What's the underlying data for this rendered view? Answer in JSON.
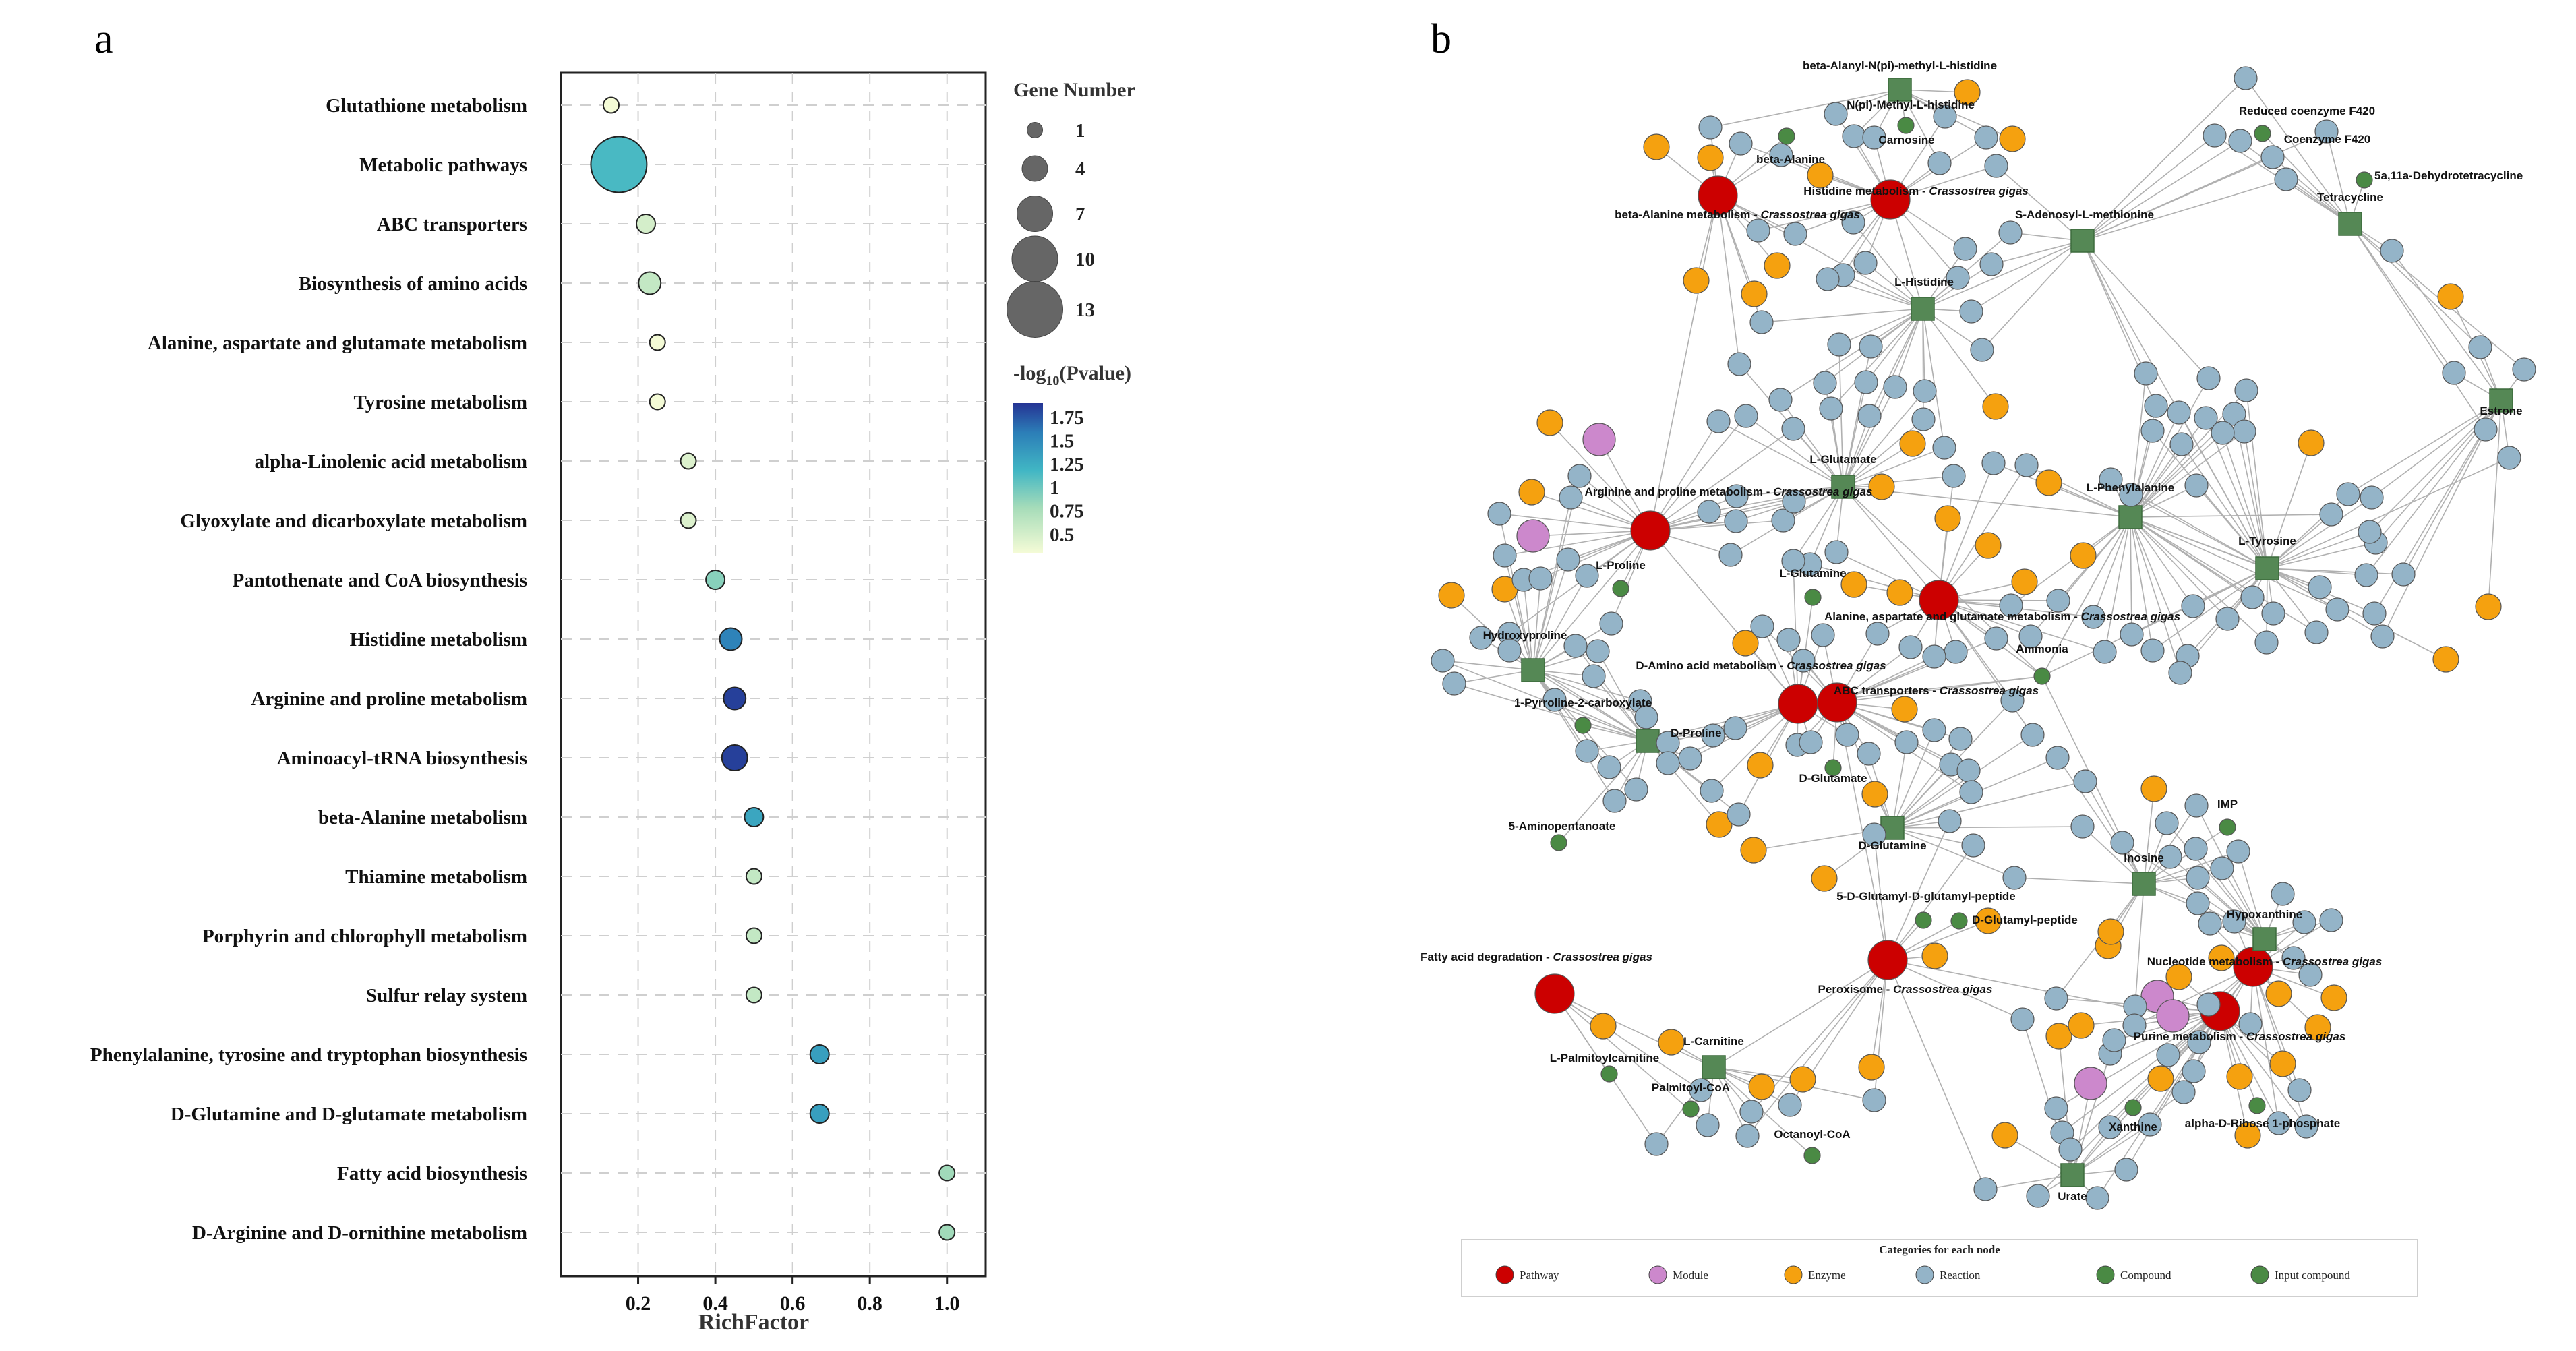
{
  "panels": {
    "a": "a",
    "b": "b"
  },
  "colors": {
    "pathway": "#cc0000",
    "module": "#cc88cc",
    "enzyme": "#f5a10f",
    "reaction": "#94b4c8",
    "compound": "#4a8a44",
    "input_compound": "#4a8a44",
    "square_fill": "#558855",
    "edge": "#b3b3b3"
  },
  "chart_data": [
    {
      "type": "scatter",
      "subtype": "enrichment-bubble",
      "xlabel": "RichFactor",
      "xlim": [
        0,
        1.1
      ],
      "xticks": [
        "0.2",
        "0.4",
        "0.6",
        "0.8",
        "1.0"
      ],
      "xtick_values": [
        0.2,
        0.4,
        0.6,
        0.8,
        1.0
      ],
      "categories": [
        "Glutathione metabolism",
        "Metabolic pathways",
        "ABC transporters",
        "Biosynthesis of amino acids",
        "Alanine, aspartate and glutamate metabolism",
        "Tyrosine metabolism",
        "alpha-Linolenic acid metabolism",
        "Glyoxylate and dicarboxylate metabolism",
        "Pantothenate and CoA biosynthesis",
        "Histidine metabolism",
        "Arginine and proline metabolism",
        "Aminoacyl-tRNA biosynthesis",
        "beta-Alanine metabolism",
        "Thiamine metabolism",
        "Porphyrin and chlorophyll metabolism",
        "Sulfur relay system",
        "Phenylalanine, tyrosine and tryptophan biosynthesis",
        "D-Glutamine and D-glutamate metabolism",
        "Fatty acid biosynthesis",
        "D-Arginine and D-ornithine metabolism"
      ],
      "rich_factor": [
        0.13,
        0.15,
        0.22,
        0.23,
        0.25,
        0.25,
        0.33,
        0.33,
        0.4,
        0.44,
        0.45,
        0.45,
        0.5,
        0.5,
        0.5,
        0.5,
        0.67,
        0.67,
        1.0,
        1.0
      ],
      "gene_number": [
        1,
        13,
        2,
        3,
        1,
        1,
        1,
        1,
        2,
        3,
        3,
        4,
        2,
        1,
        1,
        1,
        2,
        2,
        1,
        1
      ],
      "neg_log10_p": [
        0.3,
        1.15,
        0.5,
        0.6,
        0.3,
        0.3,
        0.45,
        0.45,
        0.9,
        1.55,
        1.85,
        1.85,
        1.3,
        0.6,
        0.6,
        0.6,
        1.35,
        1.35,
        0.8,
        0.8
      ],
      "size_legend": {
        "title": "Gene Number",
        "values": [
          1,
          4,
          7,
          10,
          13
        ],
        "labels": [
          "1",
          "4",
          "7",
          "10",
          "13"
        ]
      },
      "color_legend": {
        "title_prefix": "-log",
        "title_sub": "10",
        "title_suffix": "(Pvalue)",
        "ticks": [
          "1.75",
          "1.5",
          "1.25",
          "1",
          "0.75",
          "0.5"
        ],
        "tick_values": [
          1.75,
          1.5,
          1.25,
          1.0,
          0.75,
          0.5
        ],
        "range": [
          0.3,
          1.9
        ]
      }
    },
    {
      "type": "network",
      "legend": {
        "title": "Categories for each node",
        "items": [
          {
            "label": "Pathway",
            "color": "#cc0000"
          },
          {
            "label": "Module",
            "color": "#cc88cc"
          },
          {
            "label": "Enzyme",
            "color": "#f5a10f"
          },
          {
            "label": "Reaction",
            "color": "#94b4c8"
          },
          {
            "label": "Compound",
            "color": "#4a8a44"
          },
          {
            "label": "Input compound",
            "color": "#4a8a44"
          }
        ]
      },
      "labels": [
        {
          "text": "beta-Alanyl-N(pi)-methyl-L-histidine"
        },
        {
          "text": "N(pi)-Methyl-L-histidine"
        },
        {
          "text": "Carnosine"
        },
        {
          "text": "beta-Alanine"
        },
        {
          "text": "Histidine metabolism - ",
          "species": "Crassostrea gigas"
        },
        {
          "text": "beta-Alanine metabolism - ",
          "species": "Crassostrea gigas"
        },
        {
          "text": "S-Adenosyl-L-methionine"
        },
        {
          "text": "L-Histidine"
        },
        {
          "text": "Reduced coenzyme F420"
        },
        {
          "text": "Coenzyme F420"
        },
        {
          "text": "5a,11a-Dehydrotetracycline"
        },
        {
          "text": "Tetracycline"
        },
        {
          "text": "Estrone"
        },
        {
          "text": "L-Glutamate"
        },
        {
          "text": "L-Phenylalanine"
        },
        {
          "text": "Arginine and proline metabolism - ",
          "species": "Crassostrea gigas"
        },
        {
          "text": "L-Tyrosine"
        },
        {
          "text": "L-Proline"
        },
        {
          "text": "L-Glutamine"
        },
        {
          "text": "Alanine, aspartate and glutamate metabolism - ",
          "species": "Crassostrea gigas"
        },
        {
          "text": "Hydroxyproline"
        },
        {
          "text": "Ammonia"
        },
        {
          "text": "D-Amino acid metabolism - ",
          "species": "Crassostrea gigas"
        },
        {
          "text": "ABC transporters - ",
          "species": "Crassostrea gigas"
        },
        {
          "text": "1-Pyrroline-2-carboxylate"
        },
        {
          "text": "D-Proline"
        },
        {
          "text": "D-Glutamate"
        },
        {
          "text": "IMP"
        },
        {
          "text": "5-Aminopentanoate"
        },
        {
          "text": "D-Glutamine"
        },
        {
          "text": "Inosine"
        },
        {
          "text": "5-D-Glutamyl-D-glutamyl-peptide"
        },
        {
          "text": "D-Glutamyl-peptide"
        },
        {
          "text": "Hypoxanthine"
        },
        {
          "text": "Fatty acid degradation - ",
          "species": "Crassostrea gigas"
        },
        {
          "text": "Nucleotide metabolism - ",
          "species": "Crassostrea gigas"
        },
        {
          "text": "Peroxisome - ",
          "species": "Crassostrea gigas"
        },
        {
          "text": "Purine metabolism - ",
          "species": "Crassostrea gigas"
        },
        {
          "text": "L-Carnitine"
        },
        {
          "text": "L-Palmitoylcarnitine"
        },
        {
          "text": "Palmitoyl-CoA"
        },
        {
          "text": "Xanthine"
        },
        {
          "text": "alpha-D-Ribose 1-phosphate"
        },
        {
          "text": "Octanoyl-CoA"
        },
        {
          "text": "Urate"
        }
      ]
    }
  ]
}
